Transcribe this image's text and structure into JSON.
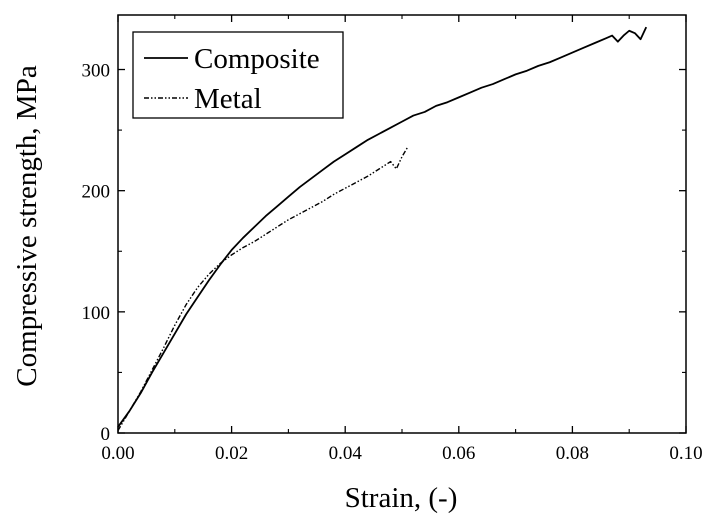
{
  "chart_data": {
    "type": "line",
    "title": "",
    "xlabel": "Strain, (-)",
    "ylabel": "Compressive strength, MPa",
    "xlim": [
      0.0,
      0.1
    ],
    "ylim": [
      0,
      345
    ],
    "x_ticks": [
      0.0,
      0.02,
      0.04,
      0.06,
      0.08,
      0.1
    ],
    "x_tick_labels": [
      "0.00",
      "0.02",
      "0.04",
      "0.06",
      "0.08",
      "0.10"
    ],
    "y_ticks": [
      0,
      100,
      200,
      300
    ],
    "y_tick_labels": [
      "0",
      "100",
      "200",
      "300"
    ],
    "grid": false,
    "legend_position": "top-left",
    "series": [
      {
        "name": "Composite",
        "line_style": "solid",
        "color": "#000000",
        "points": [
          [
            0.0,
            5
          ],
          [
            0.002,
            18
          ],
          [
            0.004,
            33
          ],
          [
            0.006,
            50
          ],
          [
            0.008,
            66
          ],
          [
            0.01,
            82
          ],
          [
            0.012,
            98
          ],
          [
            0.014,
            112
          ],
          [
            0.016,
            126
          ],
          [
            0.018,
            139
          ],
          [
            0.02,
            151
          ],
          [
            0.022,
            161
          ],
          [
            0.024,
            170
          ],
          [
            0.026,
            179
          ],
          [
            0.028,
            187
          ],
          [
            0.03,
            195
          ],
          [
            0.032,
            203
          ],
          [
            0.034,
            210
          ],
          [
            0.036,
            217
          ],
          [
            0.038,
            224
          ],
          [
            0.04,
            230
          ],
          [
            0.042,
            236
          ],
          [
            0.044,
            242
          ],
          [
            0.046,
            247
          ],
          [
            0.048,
            252
          ],
          [
            0.05,
            257
          ],
          [
            0.052,
            262
          ],
          [
            0.054,
            265
          ],
          [
            0.056,
            270
          ],
          [
            0.058,
            273
          ],
          [
            0.06,
            277
          ],
          [
            0.062,
            281
          ],
          [
            0.064,
            285
          ],
          [
            0.066,
            288
          ],
          [
            0.068,
            292
          ],
          [
            0.07,
            296
          ],
          [
            0.072,
            299
          ],
          [
            0.074,
            303
          ],
          [
            0.076,
            306
          ],
          [
            0.078,
            310
          ],
          [
            0.08,
            314
          ],
          [
            0.082,
            318
          ],
          [
            0.084,
            322
          ],
          [
            0.086,
            326
          ],
          [
            0.087,
            328
          ],
          [
            0.088,
            323
          ],
          [
            0.089,
            328
          ],
          [
            0.09,
            332
          ],
          [
            0.091,
            330
          ],
          [
            0.092,
            325
          ],
          [
            0.093,
            335
          ]
        ]
      },
      {
        "name": "Metal",
        "line_style": "dash-dot-dot",
        "color": "#000000",
        "points": [
          [
            0.0,
            2
          ],
          [
            0.002,
            18
          ],
          [
            0.004,
            34
          ],
          [
            0.006,
            52
          ],
          [
            0.008,
            70
          ],
          [
            0.01,
            89
          ],
          [
            0.012,
            106
          ],
          [
            0.014,
            120
          ],
          [
            0.016,
            131
          ],
          [
            0.018,
            140
          ],
          [
            0.02,
            147
          ],
          [
            0.022,
            153
          ],
          [
            0.024,
            158
          ],
          [
            0.026,
            164
          ],
          [
            0.028,
            170
          ],
          [
            0.03,
            176
          ],
          [
            0.032,
            181
          ],
          [
            0.034,
            186
          ],
          [
            0.036,
            191
          ],
          [
            0.038,
            197
          ],
          [
            0.04,
            202
          ],
          [
            0.042,
            207
          ],
          [
            0.044,
            212
          ],
          [
            0.046,
            218
          ],
          [
            0.048,
            224
          ],
          [
            0.049,
            218
          ],
          [
            0.05,
            228
          ],
          [
            0.051,
            236
          ]
        ]
      }
    ]
  }
}
